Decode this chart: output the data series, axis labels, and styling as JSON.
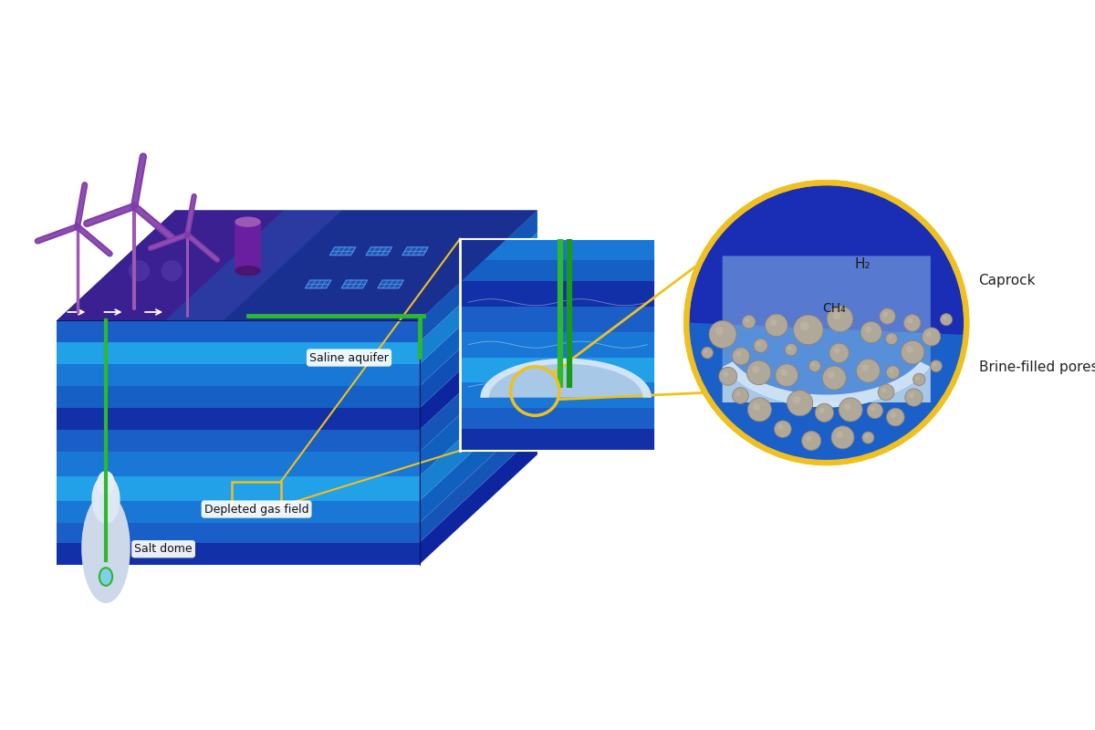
{
  "bg_color": "#ffffff",
  "labels": {
    "saline_aquifer": "Saline aquifer",
    "salt_dome": "Salt dome",
    "depleted_gas_field": "Depleted gas field",
    "caprock": "Caprock",
    "brine_filled_pores": "Brine-filled pores",
    "h2": "H₂",
    "ch4": "CH₄"
  },
  "colors": {
    "deep_blue": "#1a2db5",
    "mid_blue": "#1a5fc8",
    "light_blue": "#2196f3",
    "bright_blue": "#29b6f6",
    "stripe_dark": "#1435a0",
    "stripe_mid": "#1976d2",
    "stripe_cyan": "#0d9fd8",
    "purple_dark": "#5e2d91",
    "purple": "#7e3daa",
    "purple_light": "#9b59b6",
    "purple_tank": "#6a1fa0",
    "green_pipe": "#2db82d",
    "green_pipe2": "#1a9a1a",
    "yellow": "#f0c020",
    "gray_pore": "#b0a898",
    "gray_pore2": "#c8bdb0",
    "salt_white": "#cdd8ea",
    "salt_light": "#dde8f5",
    "cs_bg": "#1a50c0",
    "caprock_light": "#a8c8e8",
    "caprock_white": "#d8eaf8",
    "brine_blue": "#1e6fd0",
    "solar_blue": "#2255aa",
    "solar_line": "#5599ff"
  }
}
